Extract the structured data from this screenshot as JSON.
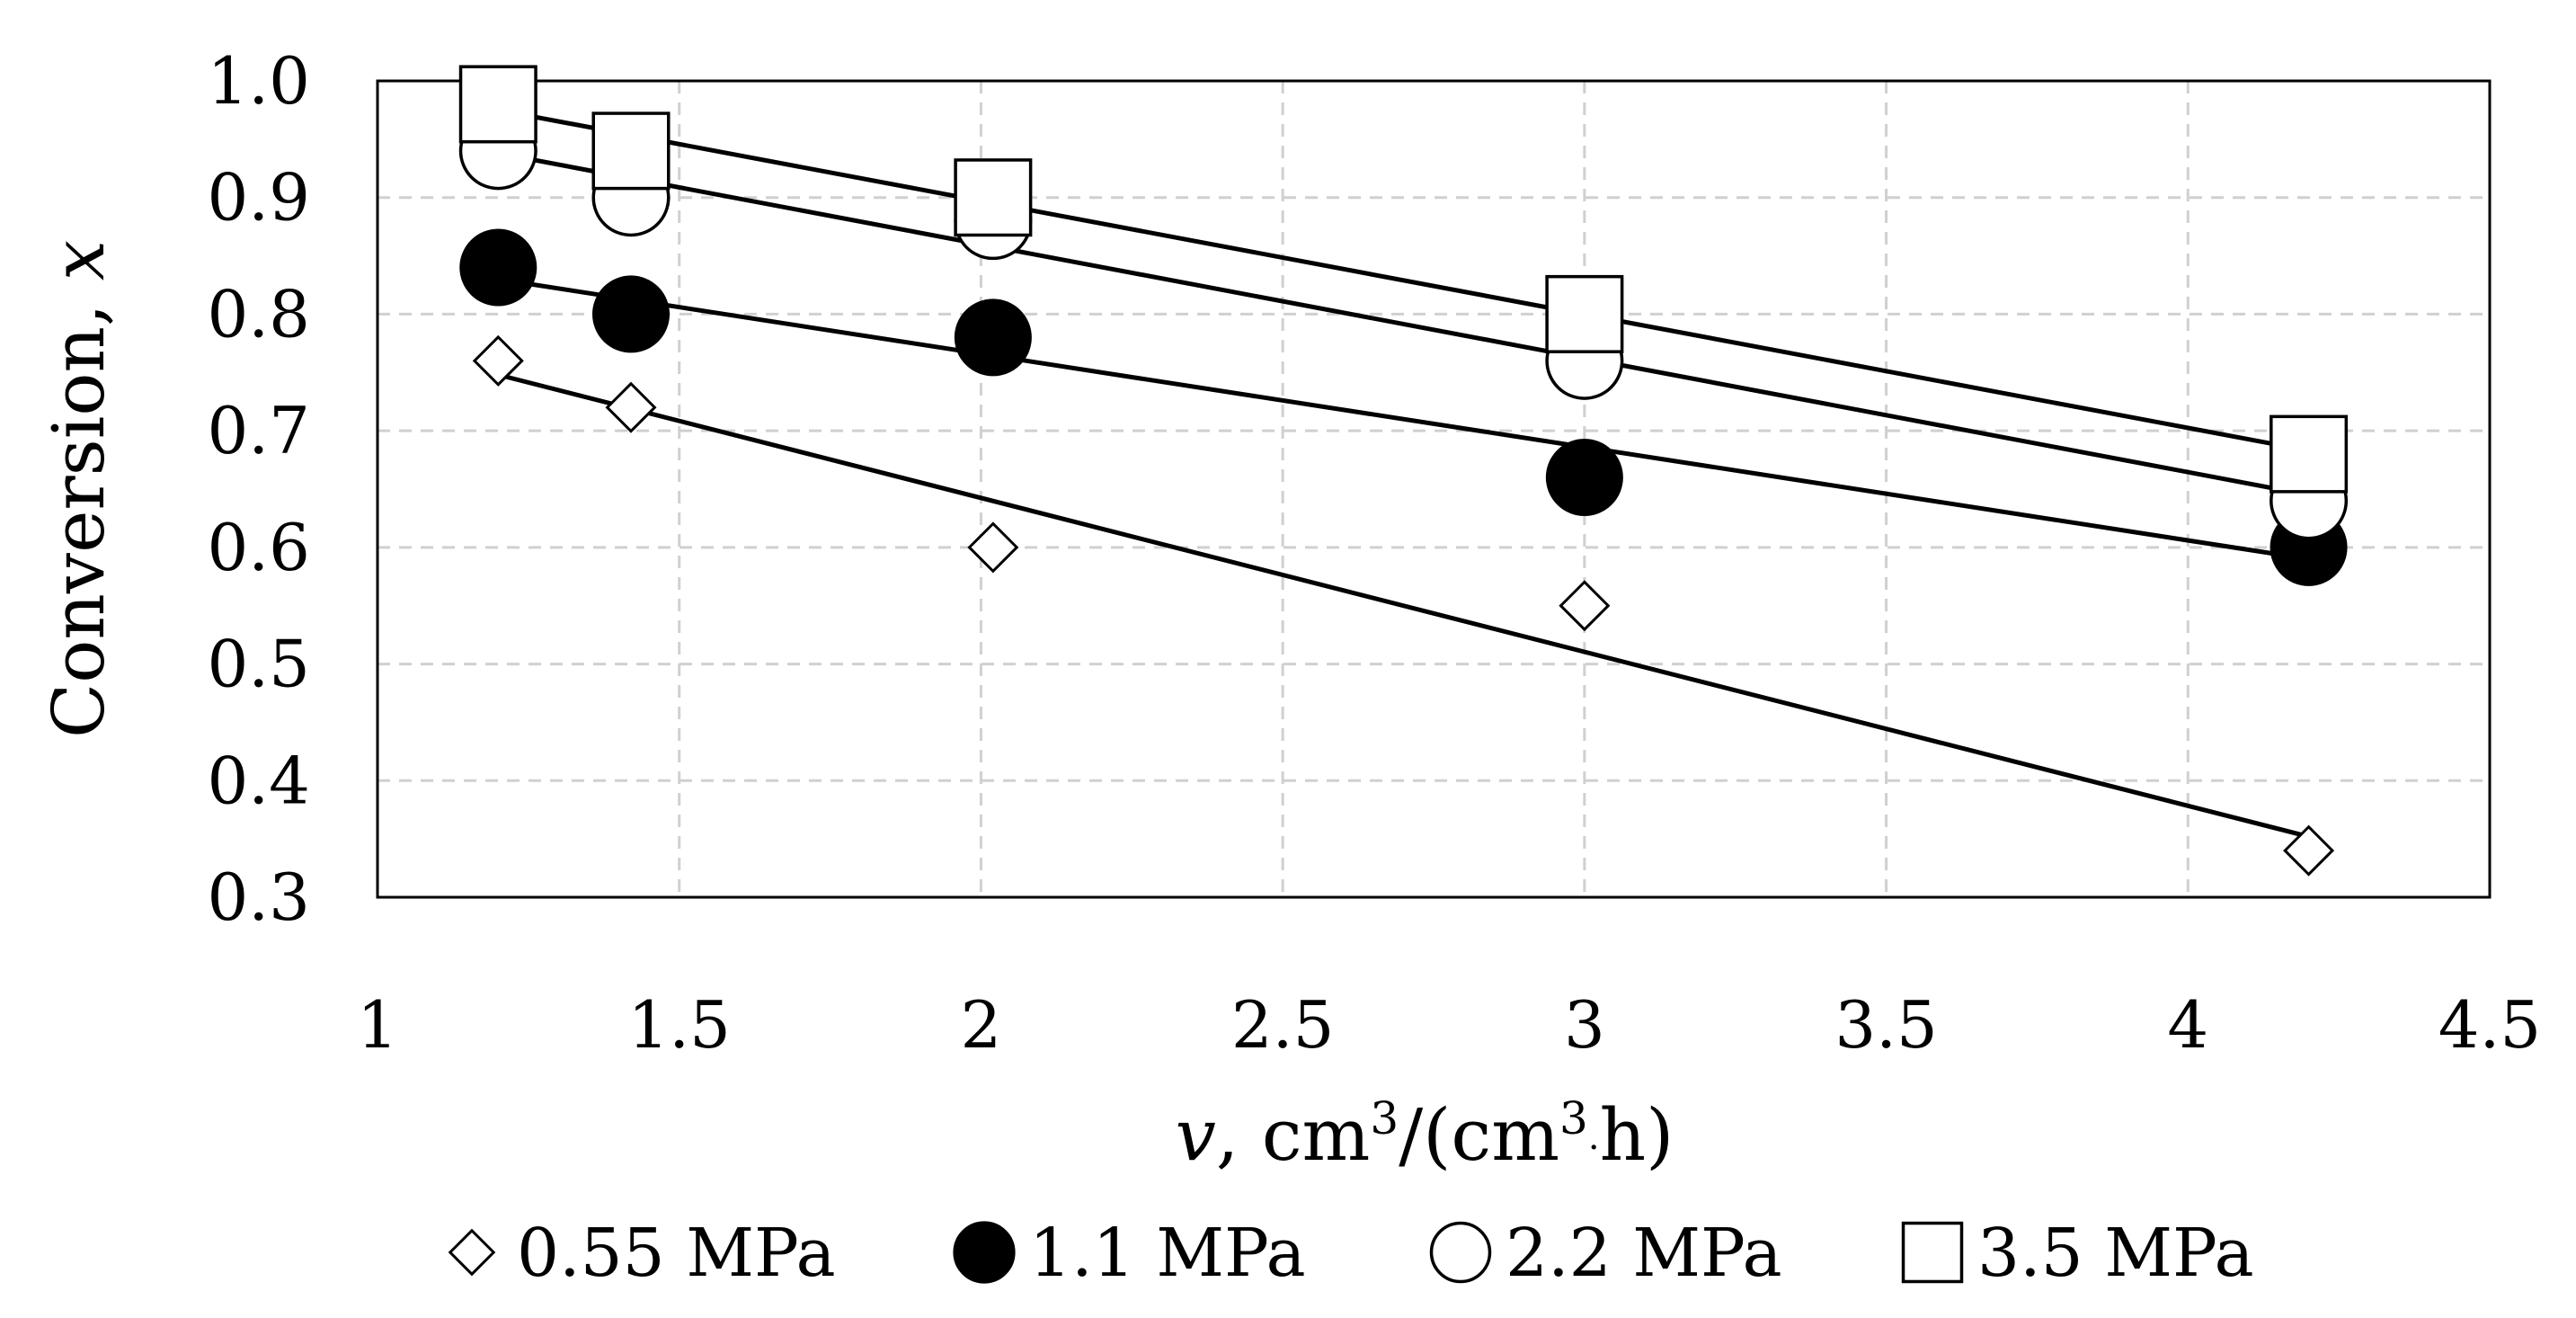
{
  "chart_data": {
    "type": "scatter",
    "xlabel_var": "v",
    "xlabel_unit_prefix": ", cm",
    "xlabel_sup1": "3",
    "xlabel_mid": "/(cm",
    "xlabel_sup2": "3",
    "xlabel_dot": "·",
    "xlabel_end": "h)",
    "ylabel_text": "Conversion, ",
    "ylabel_var": "x",
    "xlim": [
      1,
      4.5
    ],
    "ylim": [
      0.3,
      1.0
    ],
    "xticks": [
      "1",
      "1.5",
      "2",
      "2.5",
      "3",
      "3.5",
      "4",
      "4.5"
    ],
    "xtick_values": [
      1,
      1.5,
      2,
      2.5,
      3,
      3.5,
      4,
      4.5
    ],
    "yticks": [
      "0.3",
      "0.4",
      "0.5",
      "0.6",
      "0.7",
      "0.8",
      "0.9",
      "1.0"
    ],
    "ytick_values": [
      0.3,
      0.4,
      0.5,
      0.6,
      0.7,
      0.8,
      0.9,
      1.0
    ],
    "grid": true,
    "legend_position": "bottom",
    "series": [
      {
        "name": "0.55 MPa",
        "marker": "diamond-open",
        "x": [
          1.2,
          1.42,
          2.02,
          3.0,
          4.2
        ],
        "y": [
          0.76,
          0.72,
          0.6,
          0.55,
          0.34
        ],
        "trend": {
          "x": [
            1.2,
            4.2
          ],
          "y": [
            0.748,
            0.352
          ]
        }
      },
      {
        "name": "1.1 MPa",
        "marker": "circle-filled",
        "x": [
          1.2,
          1.42,
          2.02,
          3.0,
          4.2
        ],
        "y": [
          0.84,
          0.8,
          0.78,
          0.66,
          0.6
        ],
        "trend": {
          "x": [
            1.2,
            4.2
          ],
          "y": [
            0.83,
            0.59
          ]
        }
      },
      {
        "name": "2.2 MPa",
        "marker": "circle-open",
        "x": [
          1.2,
          1.42,
          2.02,
          3.0,
          4.2
        ],
        "y": [
          0.94,
          0.9,
          0.88,
          0.76,
          0.64
        ],
        "trend": {
          "x": [
            1.2,
            4.2
          ],
          "y": [
            0.938,
            0.645
          ]
        }
      },
      {
        "name": "3.5 MPa",
        "marker": "square-open",
        "x": [
          1.2,
          1.42,
          2.02,
          3.0,
          4.2
        ],
        "y": [
          0.98,
          0.94,
          0.9,
          0.8,
          0.68
        ],
        "trend": {
          "x": [
            1.2,
            4.2
          ],
          "y": [
            0.975,
            0.683
          ]
        }
      }
    ]
  }
}
